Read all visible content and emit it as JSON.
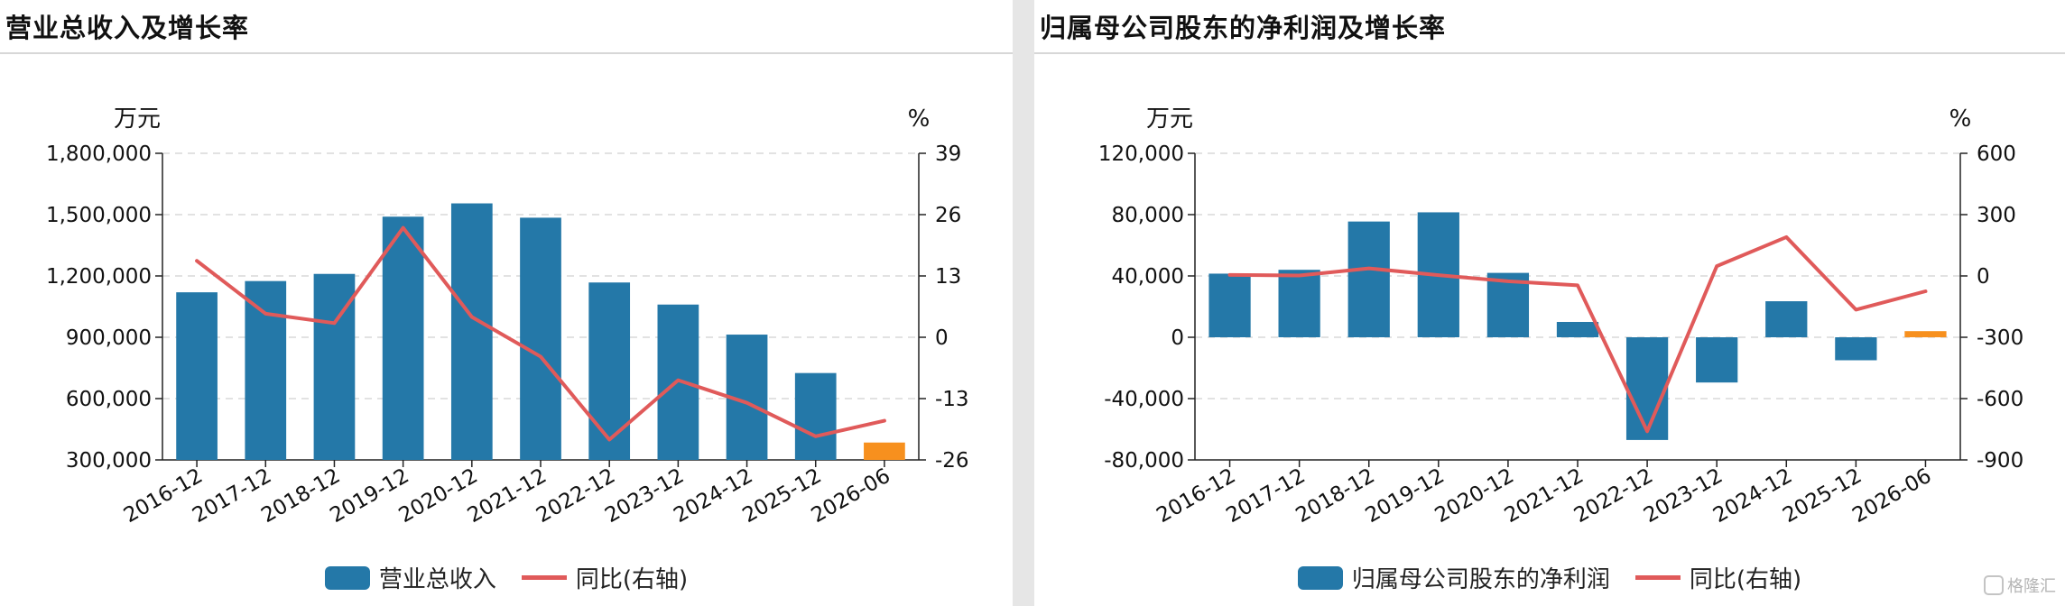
{
  "chart_data": [
    {
      "type": "bar",
      "title": "营业总收入及增长率",
      "left_unit": "万元",
      "right_unit": "%",
      "categories": [
        "2016-12",
        "2017-12",
        "2018-12",
        "2019-12",
        "2020-12",
        "2021-12",
        "2022-12",
        "2023-12",
        "2024-12",
        "2025-12",
        "2026-06"
      ],
      "series": [
        {
          "name": "营业总收入",
          "type": "bar",
          "axis": "left",
          "values": [
            1120000,
            1175000,
            1210000,
            1490000,
            1555000,
            1485000,
            1168000,
            1060000,
            913000,
            725000,
            385000
          ]
        },
        {
          "name": "同比(右轴)",
          "type": "line",
          "axis": "right",
          "values": [
            16.2,
            5.0,
            3.0,
            23.2,
            4.3,
            -4.1,
            -21.7,
            -9.1,
            -13.9,
            -21.0,
            -17.7
          ]
        }
      ],
      "left_axis": {
        "min": 300000,
        "max": 1800000,
        "ticks": [
          300000,
          600000,
          900000,
          1200000,
          1500000,
          1800000
        ],
        "tick_labels": [
          "300,000",
          "600,000",
          "900,000",
          "1,200,000",
          "1,500,000",
          "1,800,000"
        ]
      },
      "right_axis": {
        "min": -26,
        "max": 39,
        "ticks": [
          -26,
          -13,
          0,
          13,
          26,
          39
        ],
        "tick_labels": [
          "-26",
          "-13",
          "0",
          "13",
          "26",
          "39"
        ]
      },
      "grid": true,
      "legend_position": "bottom-center"
    },
    {
      "type": "bar",
      "title": "归属母公司股东的净利润及增长率",
      "left_unit": "万元",
      "right_unit": "%",
      "categories": [
        "2016-12",
        "2017-12",
        "2018-12",
        "2019-12",
        "2020-12",
        "2021-12",
        "2022-12",
        "2023-12",
        "2024-12",
        "2025-12",
        "2026-06"
      ],
      "series": [
        {
          "name": "归属母公司股东的净利润",
          "type": "bar",
          "axis": "left",
          "values": [
            41500,
            44000,
            75500,
            81500,
            42000,
            10000,
            -67000,
            -29500,
            23500,
            -15000,
            4000
          ]
        },
        {
          "name": "同比(右轴)",
          "type": "line",
          "axis": "right",
          "values": [
            5,
            2,
            37,
            4,
            -26,
            -46,
            -760,
            48,
            190,
            -165,
            -75
          ]
        }
      ],
      "left_axis": {
        "min": -80000,
        "max": 120000,
        "ticks": [
          -80000,
          -40000,
          0,
          40000,
          80000,
          120000
        ],
        "tick_labels": [
          "-80,000",
          "-40,000",
          "0",
          "40,000",
          "80,000",
          "120,000"
        ]
      },
      "right_axis": {
        "min": -900,
        "max": 600,
        "ticks": [
          -900,
          -600,
          -300,
          0,
          300,
          600
        ],
        "tick_labels": [
          "-900",
          "-600",
          "-300",
          "0",
          "300",
          "600"
        ]
      },
      "grid": true,
      "legend_position": "bottom-center"
    }
  ],
  "colors": {
    "bar": "#2478a8",
    "bar_highlight": "#f7901e",
    "line": "#e05a5a",
    "grid": "#d9d9d9"
  },
  "watermark": "格隆汇"
}
